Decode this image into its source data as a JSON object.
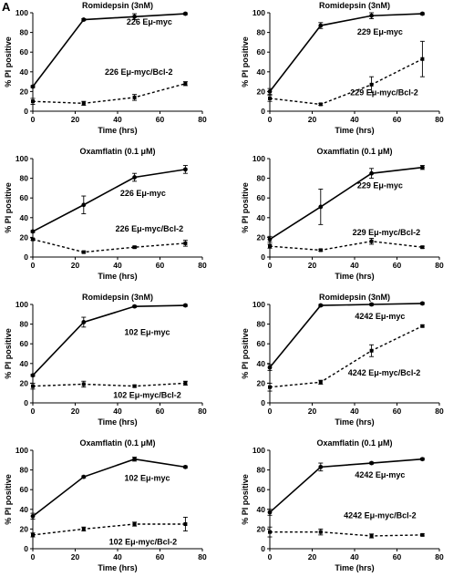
{
  "figure": {
    "panel_letter": "A"
  },
  "chart_data": [
    {
      "type": "line",
      "title": "Romidepsin (3nM)",
      "xlabel": "Time (hrs)",
      "ylabel": "% PI positive",
      "xlim": [
        0,
        80
      ],
      "ylim": [
        0,
        100
      ],
      "xticks": [
        "0",
        "20",
        "40",
        "60",
        "80"
      ],
      "yticks": [
        "0",
        "20",
        "40",
        "60",
        "80",
        "100"
      ],
      "series": [
        {
          "name": "226 Eμ-myc",
          "style": "solid",
          "x": [
            0,
            24,
            48,
            72
          ],
          "y": [
            25,
            93,
            96,
            99
          ],
          "err": [
            1,
            1,
            3,
            1
          ]
        },
        {
          "name": "226 Eμ-myc/Bcl-2",
          "style": "dashed",
          "x": [
            0,
            24,
            48,
            72
          ],
          "y": [
            10,
            8,
            14,
            28
          ],
          "err": [
            3,
            2,
            3,
            2
          ]
        }
      ]
    },
    {
      "type": "line",
      "title": "Romidepsin (3nM)",
      "xlabel": "Time (hrs)",
      "ylabel": "% PI positive",
      "xlim": [
        0,
        80
      ],
      "ylim": [
        0,
        100
      ],
      "xticks": [
        "0",
        "20",
        "40",
        "60",
        "80"
      ],
      "yticks": [
        "0",
        "20",
        "40",
        "60",
        "80",
        "100"
      ],
      "series": [
        {
          "name": "229 Eμ-myc",
          "style": "solid",
          "x": [
            0,
            24,
            48,
            72
          ],
          "y": [
            20,
            87,
            97,
            99
          ],
          "err": [
            3,
            3,
            3,
            1
          ]
        },
        {
          "name": "229 Eμ-myc/Bcl-2",
          "style": "dashed",
          "x": [
            0,
            24,
            48,
            72
          ],
          "y": [
            13,
            7,
            27,
            53
          ],
          "err": [
            3,
            1,
            8,
            18
          ]
        }
      ]
    },
    {
      "type": "line",
      "title": "Oxamflatin (0.1 μM)",
      "xlabel": "Time (hrs)",
      "ylabel": "% PI positive",
      "xlim": [
        0,
        80
      ],
      "ylim": [
        0,
        100
      ],
      "xticks": [
        "0",
        "20",
        "40",
        "60",
        "80"
      ],
      "yticks": [
        "0",
        "20",
        "40",
        "60",
        "80",
        "100"
      ],
      "series": [
        {
          "name": "226 Eμ-myc",
          "style": "solid",
          "x": [
            0,
            24,
            48,
            72
          ],
          "y": [
            26,
            53,
            81,
            89
          ],
          "err": [
            1,
            9,
            4,
            4
          ]
        },
        {
          "name": "226 Eμ-myc/Bcl-2",
          "style": "dashed",
          "x": [
            0,
            24,
            48,
            72
          ],
          "y": [
            18,
            5,
            10,
            14
          ],
          "err": [
            1,
            1,
            1,
            3
          ]
        }
      ]
    },
    {
      "type": "line",
      "title": "Oxamflatin (0.1 μM)",
      "xlabel": "Time (hrs)",
      "ylabel": "% PI positive",
      "xlim": [
        0,
        80
      ],
      "ylim": [
        0,
        100
      ],
      "xticks": [
        "0",
        "20",
        "40",
        "60",
        "80"
      ],
      "yticks": [
        "0",
        "20",
        "40",
        "60",
        "80",
        "100"
      ],
      "series": [
        {
          "name": "229 Eμ-myc",
          "style": "solid",
          "x": [
            0,
            24,
            48,
            72
          ],
          "y": [
            18,
            51,
            85,
            91
          ],
          "err": [
            3,
            18,
            5,
            2
          ]
        },
        {
          "name": "229 Eμ-myc/Bcl-2",
          "style": "dashed",
          "x": [
            0,
            24,
            48,
            72
          ],
          "y": [
            11,
            7,
            16,
            10
          ],
          "err": [
            2,
            1,
            3,
            1
          ]
        }
      ]
    },
    {
      "type": "line",
      "title": "Romidepsin (3nM)",
      "xlabel": "Time (hrs)",
      "ylabel": "% PI positive",
      "xlim": [
        0,
        80
      ],
      "ylim": [
        0,
        100
      ],
      "xticks": [
        "0",
        "20",
        "40",
        "60",
        "80"
      ],
      "yticks": [
        "0",
        "20",
        "40",
        "60",
        "80",
        "100"
      ],
      "series": [
        {
          "name": "102 Eμ-myc",
          "style": "solid",
          "x": [
            0,
            24,
            48,
            72
          ],
          "y": [
            28,
            82,
            98,
            99
          ],
          "err": [
            1,
            5,
            1,
            1
          ]
        },
        {
          "name": "102 Eμ-myc/Bcl-2",
          "style": "dashed",
          "x": [
            0,
            24,
            48,
            72
          ],
          "y": [
            17,
            19,
            17,
            20
          ],
          "err": [
            3,
            3,
            1,
            2
          ]
        }
      ]
    },
    {
      "type": "line",
      "title": "Romidepsin (3nM)",
      "xlabel": "Time (hrs)",
      "ylabel": "% PI positive",
      "xlim": [
        0,
        80
      ],
      "ylim": [
        0,
        100
      ],
      "xticks": [
        "0",
        "20",
        "40",
        "60",
        "80"
      ],
      "yticks": [
        "0",
        "20",
        "40",
        "60",
        "80",
        "100"
      ],
      "series": [
        {
          "name": "4242 Eμ-myc",
          "style": "solid",
          "x": [
            0,
            24,
            48,
            72
          ],
          "y": [
            36,
            99,
            100,
            101
          ],
          "err": [
            3,
            1,
            1,
            1
          ]
        },
        {
          "name": "4242 Eμ-myc/Bcl-2",
          "style": "dashed",
          "x": [
            0,
            24,
            48,
            72
          ],
          "y": [
            16,
            21,
            53,
            78
          ],
          "err": [
            4,
            2,
            6,
            1
          ]
        }
      ]
    },
    {
      "type": "line",
      "title": "Oxamflatin (0.1 μM)",
      "xlabel": "Time (hrs)",
      "ylabel": "% PI positive",
      "xlim": [
        0,
        80
      ],
      "ylim": [
        0,
        100
      ],
      "xticks": [
        "0",
        "20",
        "40",
        "60",
        "80"
      ],
      "yticks": [
        "0",
        "20",
        "40",
        "60",
        "80",
        "100"
      ],
      "series": [
        {
          "name": "102 Eμ-myc",
          "style": "solid",
          "x": [
            0,
            24,
            48,
            72
          ],
          "y": [
            33,
            73,
            91,
            83
          ],
          "err": [
            3,
            1,
            2,
            1
          ]
        },
        {
          "name": "102 Eμ-myc/Bcl-2",
          "style": "dashed",
          "x": [
            0,
            24,
            48,
            72
          ],
          "y": [
            14,
            20,
            25,
            25
          ],
          "err": [
            2,
            2,
            2,
            7
          ]
        }
      ]
    },
    {
      "type": "line",
      "title": "Oxamflatin (0.1 μM)",
      "xlabel": "Time (hrs)",
      "ylabel": "% PI positive",
      "xlim": [
        0,
        80
      ],
      "ylim": [
        0,
        100
      ],
      "xticks": [
        "0",
        "20",
        "40",
        "60",
        "80"
      ],
      "yticks": [
        "0",
        "20",
        "40",
        "60",
        "80",
        "100"
      ],
      "series": [
        {
          "name": "4242 Eμ-myc",
          "style": "solid",
          "x": [
            0,
            24,
            48,
            72
          ],
          "y": [
            37,
            83,
            87,
            91
          ],
          "err": [
            3,
            4,
            1,
            1
          ]
        },
        {
          "name": "4242 Eμ-myc/Bcl-2",
          "style": "dashed",
          "x": [
            0,
            24,
            48,
            72
          ],
          "y": [
            17,
            17,
            13,
            14
          ],
          "err": [
            5,
            3,
            2,
            1
          ]
        }
      ]
    }
  ]
}
